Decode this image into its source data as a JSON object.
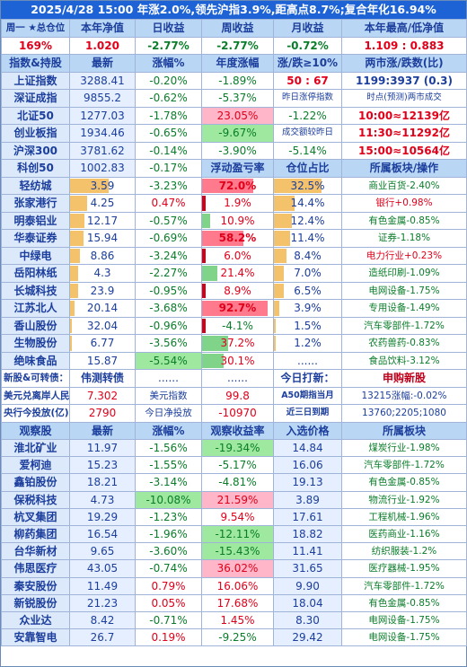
{
  "banner": "2025/4/28 15:00 年涨2.0%,领先沪指3.9%,距高点8.7%;复合年化16.94%",
  "summary": {
    "headers": [
      "周一 ★总仓位",
      "本年净值",
      "日收益",
      "周收益",
      "月收益",
      "本年最高/低净值"
    ],
    "values": [
      "169%",
      "1.020",
      "-2.77%",
      "-2.77%",
      "-0.72%",
      "1.109 : 0.883"
    ]
  },
  "index_header": [
    "指数&持股",
    "最新",
    "涨幅%",
    "年度涨幅",
    "涨/跌≥10%",
    "两市涨/跌数(比)"
  ],
  "indices": [
    {
      "name": "上证指数",
      "price": "3288.41",
      "pct": "-0.20%",
      "year": "-1.89%",
      "col5": "50 : 67",
      "col6": "1199:3937 (0.3)"
    },
    {
      "name": "深证成指",
      "price": "9855.2",
      "pct": "-0.62%",
      "year": "-5.37%",
      "col5": "昨日涨停指数",
      "col6": "时点(预测)两市成交"
    },
    {
      "name": "北证50",
      "price": "1277.03",
      "pct": "-1.78%",
      "year": "23.05%",
      "col5": "-1.22%",
      "col6": "10:00≈12139亿"
    },
    {
      "name": "创业板指",
      "price": "1934.46",
      "pct": "-0.65%",
      "year": "-9.67%",
      "col5": "成交额较昨日",
      "col6": "11:30≈11292亿"
    },
    {
      "name": "沪深300",
      "price": "3781.62",
      "pct": "-0.14%",
      "year": "-3.90%",
      "col5": "-5.14%",
      "col6": "15:00≈10564亿"
    },
    {
      "name": "科创50",
      "price": "1002.83",
      "pct": "-0.17%",
      "year": "浮动盈亏率",
      "col5": "仓位占比",
      "col6": "所属板块/操作"
    }
  ],
  "holdings": [
    {
      "name": "轻纺城",
      "price": "3.59",
      "pct": "-3.23%",
      "pnl": "72.0%",
      "pnl_v": 72.0,
      "pos": "32.5%",
      "pos_v": 32.5,
      "sector": "商业百货-2.40%"
    },
    {
      "name": "张家港行",
      "price": "4.25",
      "pct": "0.47%",
      "pnl": "1.9%",
      "pnl_v": 1.9,
      "pos": "14.4%",
      "pos_v": 14.4,
      "sector": "银行+0.98%"
    },
    {
      "name": "明泰铝业",
      "price": "12.17",
      "pct": "-0.57%",
      "pnl": "10.9%",
      "pnl_v": 10.9,
      "pos": "12.4%",
      "pos_v": 12.4,
      "sector": "有色金属-0.85%"
    },
    {
      "name": "华泰证券",
      "price": "15.94",
      "pct": "-0.69%",
      "pnl": "58.2%",
      "pnl_v": 58.2,
      "pos": "11.4%",
      "pos_v": 11.4,
      "sector": "证券-1.18%"
    },
    {
      "name": "中绿电",
      "price": "8.86",
      "pct": "-3.24%",
      "pnl": "6.0%",
      "pnl_v": 6.0,
      "pos": "8.4%",
      "pos_v": 8.4,
      "sector": "电力行业+0.23%"
    },
    {
      "name": "岳阳林纸",
      "price": "4.3",
      "pct": "-2.27%",
      "pnl": "21.4%",
      "pnl_v": 21.4,
      "pos": "7.0%",
      "pos_v": 7.0,
      "sector": "造纸印刷-1.09%"
    },
    {
      "name": "长城科技",
      "price": "23.9",
      "pct": "-0.95%",
      "pnl": "8.9%",
      "pnl_v": 8.9,
      "pos": "6.5%",
      "pos_v": 6.5,
      "sector": "电网设备-1.75%"
    },
    {
      "name": "江苏北人",
      "price": "20.14",
      "pct": "-3.68%",
      "pnl": "92.7%",
      "pnl_v": 92.7,
      "pos": "3.9%",
      "pos_v": 3.9,
      "sector": "专用设备-1.49%"
    },
    {
      "name": "香山股份",
      "price": "32.04",
      "pct": "-0.96%",
      "pnl": "-4.1%",
      "pnl_v": -4.1,
      "pos": "1.5%",
      "pos_v": 1.5,
      "sector": "汽车零部件-1.72%"
    },
    {
      "name": "生物股份",
      "price": "6.77",
      "pct": "-3.56%",
      "pnl": "37.2%",
      "pnl_v": 37.2,
      "pos": "1.2%",
      "pos_v": 1.2,
      "sector": "农药兽药-0.83%"
    },
    {
      "name": "绝味食品",
      "price": "15.87",
      "pct": "-5.54%",
      "pnl": "30.1%",
      "pnl_v": 30.1,
      "pos": "......",
      "pos_v": 0,
      "sector": "食品饮料-3.12%"
    }
  ],
  "info_rows": [
    [
      "新股&可转债：",
      "伟测转债",
      "......",
      "......",
      "今日打新：",
      "申购新股"
    ],
    [
      "美元兑离岸人民币",
      "7.302",
      "美元指数",
      "99.8",
      "A50期指当月",
      "13215涨幅:-0.02%"
    ],
    [
      "央行今投放(亿)",
      "2790",
      "今日净投放",
      "-10970",
      "近三日到期",
      "13760;2205;1080"
    ]
  ],
  "watch_header": [
    "观察股",
    "最新",
    "涨幅%",
    "观察收益率",
    "入选价格",
    "所属板块"
  ],
  "watch": [
    {
      "name": "淮北矿业",
      "price": "11.97",
      "pct": "-1.56%",
      "ret": "-19.34%",
      "entry": "14.84",
      "sector": "煤炭行业-1.98%"
    },
    {
      "name": "爱柯迪",
      "price": "15.23",
      "pct": "-1.55%",
      "ret": "-5.17%",
      "entry": "16.06",
      "sector": "汽车零部件-1.72%"
    },
    {
      "name": "鑫铂股份",
      "price": "18.21",
      "pct": "-3.14%",
      "ret": "-4.81%",
      "entry": "19.13",
      "sector": "有色金属-0.85%"
    },
    {
      "name": "保税科技",
      "price": "4.73",
      "pct": "-10.08%",
      "ret": "21.59%",
      "entry": "3.89",
      "sector": "物流行业-1.92%"
    },
    {
      "name": "杭叉集团",
      "price": "19.29",
      "pct": "-1.23%",
      "ret": "9.54%",
      "entry": "17.61",
      "sector": "工程机械-1.96%"
    },
    {
      "name": "柳药集团",
      "price": "16.54",
      "pct": "-1.96%",
      "ret": "-12.11%",
      "entry": "18.82",
      "sector": "医药商业-1.16%"
    },
    {
      "name": "台华新材",
      "price": "9.65",
      "pct": "-3.60%",
      "ret": "-15.43%",
      "entry": "11.41",
      "sector": "纺织服装-1.2%"
    },
    {
      "name": "伟思医疗",
      "price": "43.05",
      "pct": "-0.74%",
      "ret": "36.02%",
      "entry": "31.65",
      "sector": "医疗器械-1.95%"
    },
    {
      "name": "秦安股份",
      "price": "11.49",
      "pct": "0.79%",
      "ret": "16.06%",
      "entry": "9.90",
      "sector": "汽车零部件-1.72%"
    },
    {
      "name": "新锐股份",
      "price": "21.23",
      "pct": "0.05%",
      "ret": "17.68%",
      "entry": "18.04",
      "sector": "有色金属-0.85%"
    },
    {
      "name": "众业达",
      "price": "8.42",
      "pct": "-0.71%",
      "ret": "1.45%",
      "entry": "8.30",
      "sector": "电网设备-1.75%"
    },
    {
      "name": "安靠智电",
      "price": "26.7",
      "pct": "0.19%",
      "ret": "-9.25%",
      "entry": "29.42",
      "sector": "电网设备-1.75%"
    }
  ]
}
